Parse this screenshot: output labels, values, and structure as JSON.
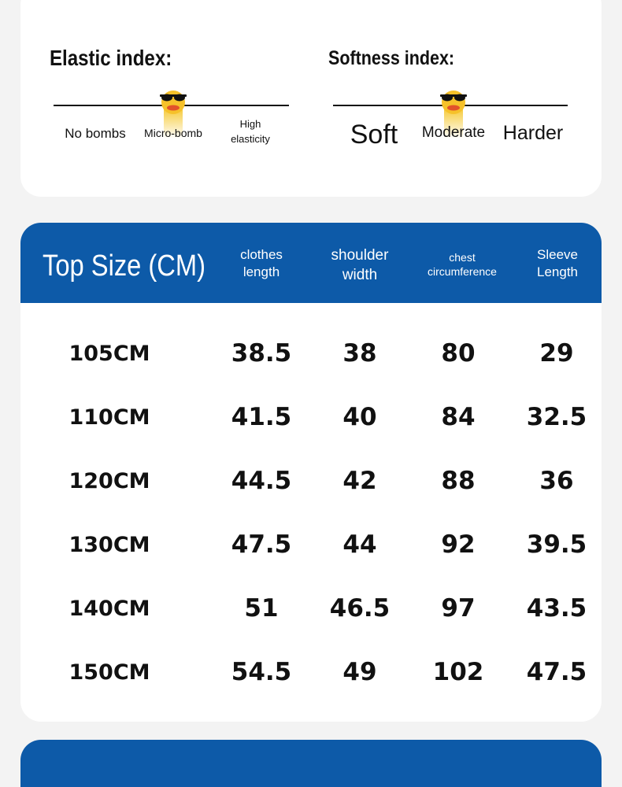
{
  "elastic_index": {
    "title": "Elastic index:",
    "labels": [
      "No bombs",
      "Micro-bomb",
      "High",
      "elasticity"
    ],
    "selected": "Micro-bomb"
  },
  "softness_index": {
    "title": "Softness index:",
    "labels": [
      "Soft",
      "Moderate",
      "Harder"
    ],
    "selected": "Moderate"
  },
  "size_table": {
    "title": "Top Size (CM)",
    "headers": [
      [
        "clothes",
        "length"
      ],
      [
        "shoulder",
        "width"
      ],
      [
        "chest",
        "circumference"
      ],
      [
        "Sleeve",
        "Length"
      ]
    ],
    "rows": [
      [
        "105CM",
        "38.5",
        "38",
        "80",
        "29"
      ],
      [
        "110CM",
        "41.5",
        "40",
        "84",
        "32.5"
      ],
      [
        "120CM",
        "44.5",
        "42",
        "88",
        "36"
      ],
      [
        "130CM",
        "47.5",
        "44",
        "92",
        "39.5"
      ],
      [
        "140CM",
        "51",
        "46.5",
        "97",
        "43.5"
      ],
      [
        "150CM",
        "54.5",
        "49",
        "102",
        "47.5"
      ]
    ]
  },
  "colors": {
    "header_blue": "#0d5aa8",
    "marker_yellow": "#f4c21a"
  },
  "icons": {
    "marker": "duck-with-sunglasses-icon"
  }
}
